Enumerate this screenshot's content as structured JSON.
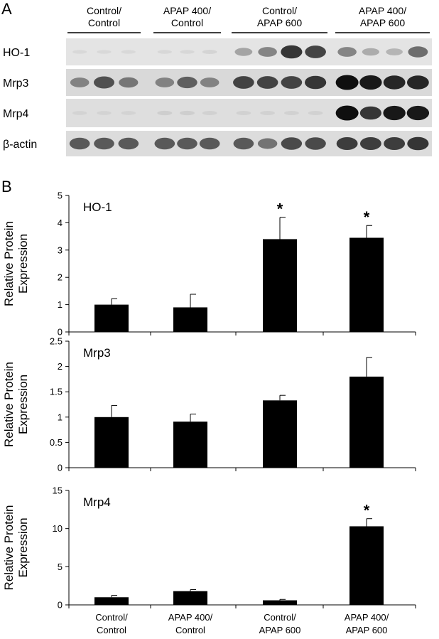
{
  "panels": {
    "a": "A",
    "b": "B"
  },
  "groups": [
    {
      "line1": "Control/",
      "line2": "Control"
    },
    {
      "line1": "APAP 400/",
      "line2": "Control"
    },
    {
      "line1": "Control/",
      "line2": "APAP 600"
    },
    {
      "line1": "APAP 400/",
      "line2": "APAP 600"
    }
  ],
  "blots": [
    {
      "label": "HO-1",
      "bg": "#e4e4e4",
      "intensity": [
        0.02,
        0.02,
        0.02,
        0.03,
        0.03,
        0.06,
        0.4,
        0.55,
        0.85,
        0.8,
        0.55,
        0.35,
        0.3,
        0.65
      ]
    },
    {
      "label": "Mrp3",
      "bg": "#d9d9d9",
      "intensity": [
        0.55,
        0.75,
        0.6,
        0.55,
        0.7,
        0.55,
        0.8,
        0.8,
        0.8,
        0.85,
        1.0,
        0.95,
        0.9,
        0.9
      ]
    },
    {
      "label": "Mrp4",
      "bg": "#dedede",
      "intensity": [
        0.04,
        0.04,
        0.04,
        0.08,
        0.08,
        0.06,
        0.06,
        0.06,
        0.06,
        0.06,
        1.0,
        0.85,
        0.95,
        0.95
      ]
    },
    {
      "label": "β-actin",
      "bg": "#dcdcdc",
      "intensity": [
        0.72,
        0.72,
        0.72,
        0.72,
        0.72,
        0.72,
        0.72,
        0.62,
        0.78,
        0.78,
        0.82,
        0.82,
        0.82,
        0.85
      ]
    }
  ],
  "chart_data": [
    {
      "type": "bar",
      "title": "HO-1",
      "ylabel": "Relative Protein Expression",
      "categories": [
        "Control/Control",
        "APAP 400/Control",
        "Control/APAP 600",
        "APAP 400/APAP 600"
      ],
      "values": [
        1.0,
        0.9,
        3.4,
        3.45
      ],
      "errors": [
        0.22,
        0.48,
        0.8,
        0.45
      ],
      "significant": [
        false,
        false,
        true,
        true
      ],
      "ylim": [
        0,
        5
      ],
      "yticks": [
        0,
        1,
        2,
        3,
        4,
        5
      ],
      "ytick_labels": [
        "0",
        "1",
        "2",
        "3",
        "4",
        "5"
      ]
    },
    {
      "type": "bar",
      "title": "Mrp3",
      "ylabel": "Relative Protein Expression",
      "categories": [
        "Control/Control",
        "APAP 400/Control",
        "Control/APAP 600",
        "APAP 400/APAP 600"
      ],
      "values": [
        1.0,
        0.91,
        1.33,
        1.8
      ],
      "errors": [
        0.23,
        0.15,
        0.1,
        0.38
      ],
      "significant": [
        false,
        false,
        false,
        false
      ],
      "ylim": [
        0,
        2.5
      ],
      "yticks": [
        0,
        0.5,
        1,
        1.5,
        2,
        2.5
      ],
      "ytick_labels": [
        "0",
        "0.5",
        "1",
        "1.5",
        "2",
        "2.5"
      ]
    },
    {
      "type": "bar",
      "title": "Mrp4",
      "ylabel": "Relative Protein Expression",
      "categories": [
        "Control/Control",
        "APAP 400/Control",
        "Control/APAP 600",
        "APAP 400/APAP 600"
      ],
      "values": [
        1.0,
        1.8,
        0.6,
        10.3
      ],
      "errors": [
        0.25,
        0.2,
        0.12,
        1.0
      ],
      "significant": [
        false,
        false,
        false,
        true
      ],
      "ylim": [
        0,
        15
      ],
      "yticks": [
        0,
        5,
        10,
        15
      ],
      "ytick_labels": [
        "0",
        "5",
        "10",
        "15"
      ]
    }
  ],
  "significance_marker": "*"
}
